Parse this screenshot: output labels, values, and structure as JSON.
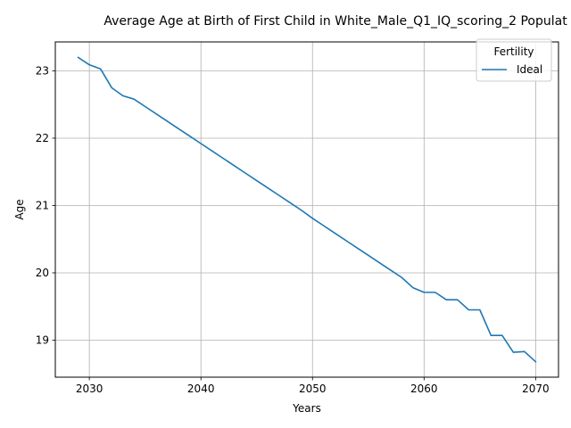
{
  "chart_data": {
    "type": "line",
    "title": "Average Age at Birth of First Child in White_Male_Q1_IQ_scoring_2 Populat",
    "xlabel": "Years",
    "ylabel": "Age",
    "xlim": [
      2026.95,
      2072.05
    ],
    "ylim": [
      18.45,
      23.43
    ],
    "xticks": [
      2030,
      2040,
      2050,
      2060,
      2070
    ],
    "yticks": [
      19,
      20,
      21,
      22,
      23
    ],
    "grid": true,
    "legend": {
      "title": "Fertility",
      "placement": "top-right"
    },
    "colors": {
      "Ideal": "#1f77b4"
    },
    "x": [
      2029,
      2030,
      2031,
      2032,
      2033,
      2034,
      2035,
      2036,
      2037,
      2038,
      2039,
      2040,
      2041,
      2042,
      2043,
      2044,
      2045,
      2046,
      2047,
      2048,
      2049,
      2050,
      2051,
      2052,
      2053,
      2054,
      2055,
      2056,
      2057,
      2058,
      2059,
      2060,
      2061,
      2062,
      2063,
      2064,
      2065,
      2066,
      2067,
      2068,
      2069,
      2070
    ],
    "series": [
      {
        "name": "Ideal",
        "values": [
          23.2,
          23.09,
          23.03,
          22.75,
          22.63,
          22.58,
          22.47,
          22.36,
          22.25,
          22.14,
          22.03,
          21.92,
          21.81,
          21.7,
          21.59,
          21.48,
          21.37,
          21.26,
          21.15,
          21.04,
          20.93,
          20.81,
          20.7,
          20.59,
          20.48,
          20.37,
          20.26,
          20.15,
          20.04,
          19.93,
          19.78,
          19.71,
          19.71,
          19.6,
          19.6,
          19.45,
          19.45,
          19.07,
          19.07,
          18.82,
          18.83,
          18.68
        ]
      }
    ]
  }
}
